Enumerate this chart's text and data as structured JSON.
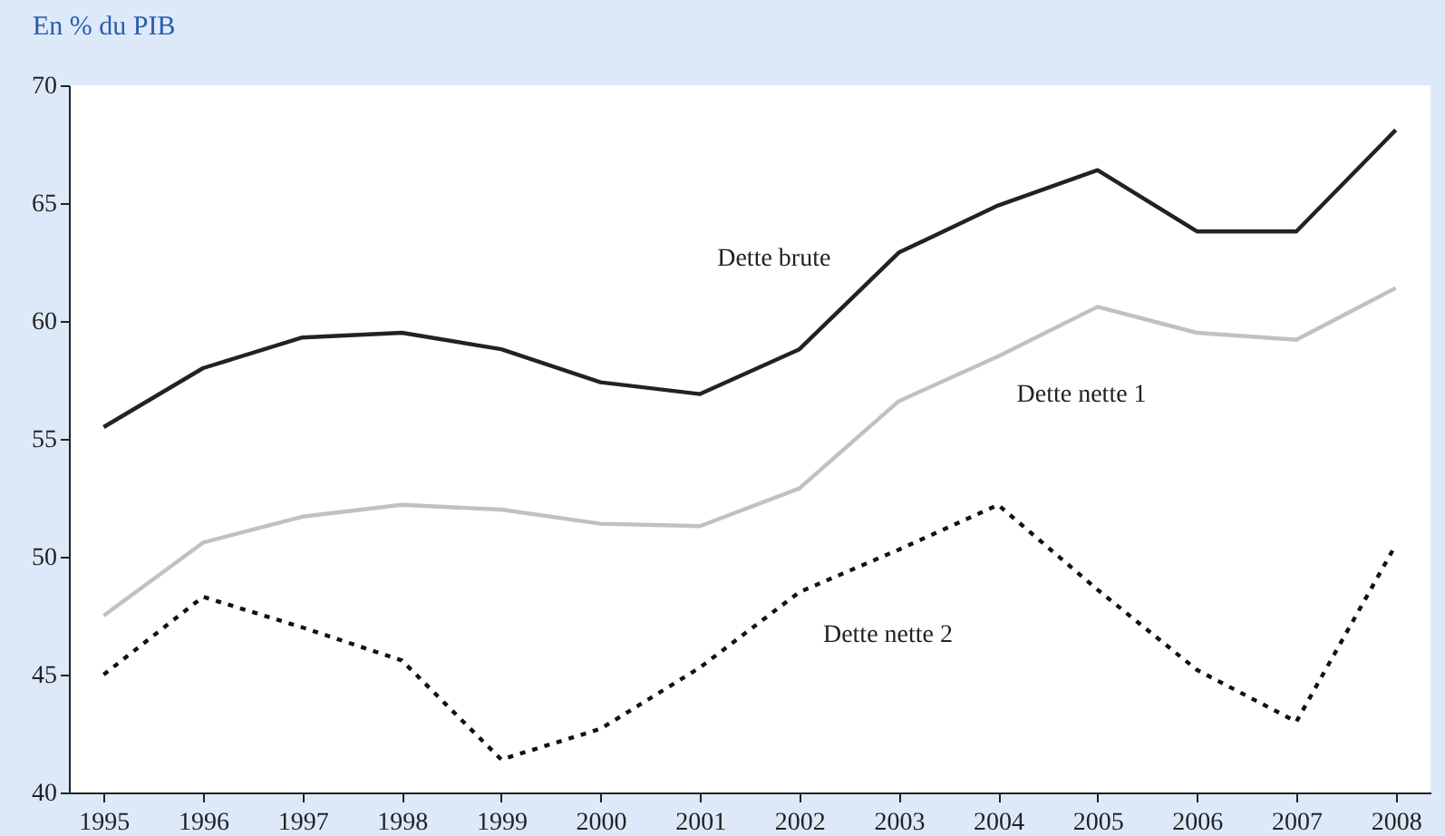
{
  "chart_data": {
    "type": "line",
    "title": "En % du PIB",
    "categories": [
      "1995",
      "1996",
      "1997",
      "1998",
      "1999",
      "2000",
      "2001",
      "2002",
      "2003",
      "2004",
      "2005",
      "2006",
      "2007",
      "2008"
    ],
    "series": [
      {
        "name": "Dette brute",
        "color": "#222222",
        "line_style": "solid",
        "values": [
          55.5,
          58.0,
          59.3,
          59.5,
          58.8,
          57.4,
          56.9,
          58.8,
          62.9,
          64.9,
          66.4,
          63.8,
          63.8,
          68.1
        ]
      },
      {
        "name": "Dette nette 1",
        "color": "#c0c0c8",
        "line_style": "solid",
        "values": [
          47.5,
          50.6,
          51.7,
          52.2,
          52.0,
          51.4,
          51.3,
          52.9,
          56.6,
          58.5,
          60.6,
          59.5,
          59.2,
          61.4
        ]
      },
      {
        "name": "Dette nette 2",
        "color": "#111111",
        "line_style": "dotted",
        "values": [
          45.0,
          48.3,
          47.0,
          45.6,
          41.4,
          42.7,
          45.3,
          48.5,
          50.3,
          52.2,
          48.6,
          45.2,
          43.0,
          50.5
        ]
      }
    ],
    "ylim": [
      40,
      70
    ],
    "yticks": [
      40,
      45,
      50,
      55,
      60,
      65,
      70
    ],
    "grid": false,
    "legend": false,
    "marker": "none"
  }
}
